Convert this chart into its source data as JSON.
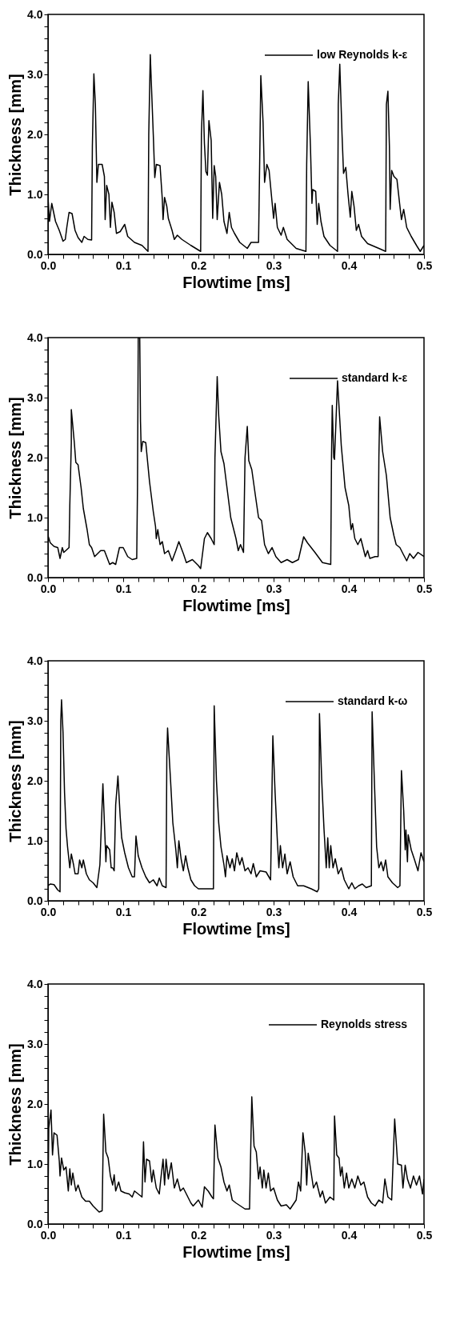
{
  "chart_data": [
    {
      "type": "line",
      "xlabel": "Flowtime [ms]",
      "ylabel": "Thickness [mm]",
      "legend": "top right",
      "xlim": [
        0,
        0.5
      ],
      "ylim": [
        0,
        4
      ],
      "xticks": [
        {
          "value": 0,
          "label": "0.0"
        },
        {
          "value": 0.02,
          "label": null
        },
        {
          "value": 0.04,
          "label": null
        },
        {
          "value": 0.06,
          "label": null
        },
        {
          "value": 0.08,
          "label": null
        },
        {
          "value": 0.1,
          "label": "0.1"
        },
        {
          "value": 0.12,
          "label": null
        },
        {
          "value": 0.14,
          "label": null
        },
        {
          "value": 0.16,
          "label": null
        },
        {
          "value": 0.18,
          "label": null
        },
        {
          "value": 0.2,
          "label": "0.2"
        },
        {
          "value": 0.22,
          "label": null
        },
        {
          "value": 0.24,
          "label": null
        },
        {
          "value": 0.26,
          "label": null
        },
        {
          "value": 0.28,
          "label": null
        },
        {
          "value": 0.3,
          "label": "0.3"
        },
        {
          "value": 0.32,
          "label": null
        },
        {
          "value": 0.34,
          "label": null
        },
        {
          "value": 0.36,
          "label": null
        },
        {
          "value": 0.38,
          "label": null
        },
        {
          "value": 0.4,
          "label": "0.4"
        },
        {
          "value": 0.42,
          "label": null
        },
        {
          "value": 0.44,
          "label": null
        },
        {
          "value": 0.46,
          "label": null
        },
        {
          "value": 0.48,
          "label": null
        },
        {
          "value": 0.5,
          "label": "0.5"
        }
      ],
      "yticks": [
        {
          "value": 0,
          "label": "0.0"
        },
        {
          "value": 0.2,
          "label": null
        },
        {
          "value": 0.4,
          "label": null
        },
        {
          "value": 0.6,
          "label": null
        },
        {
          "value": 0.8,
          "label": null
        },
        {
          "value": 1,
          "label": "1.0"
        },
        {
          "value": 1.2,
          "label": null
        },
        {
          "value": 1.4,
          "label": null
        },
        {
          "value": 1.6,
          "label": null
        },
        {
          "value": 1.8,
          "label": null
        },
        {
          "value": 2,
          "label": "2.0"
        },
        {
          "value": 2.2,
          "label": null
        },
        {
          "value": 2.4,
          "label": null
        },
        {
          "value": 2.6,
          "label": null
        },
        {
          "value": 2.8,
          "label": null
        },
        {
          "value": 3,
          "label": "3.0"
        },
        {
          "value": 3.2,
          "label": null
        },
        {
          "value": 3.4,
          "label": null
        },
        {
          "value": 3.6,
          "label": null
        },
        {
          "value": 3.8,
          "label": null
        },
        {
          "value": 4,
          "label": "4.0"
        }
      ],
      "series": [
        {
          "name": "low Reynolds k-ε",
          "color": "#000000",
          "x": [
            0,
            0.002,
            0.005,
            0.01,
            0.015,
            0.02,
            0.023,
            0.025,
            0.028,
            0.032,
            0.036,
            0.04,
            0.045,
            0.048,
            0.053,
            0.058,
            0.059,
            0.061,
            0.063,
            0.065,
            0.067,
            0.072,
            0.075,
            0.076,
            0.078,
            0.081,
            0.083,
            0.085,
            0.088,
            0.091,
            0.096,
            0.102,
            0.106,
            0.115,
            0.125,
            0.133,
            0.134,
            0.136,
            0.14,
            0.142,
            0.144,
            0.149,
            0.152,
            0.153,
            0.155,
            0.158,
            0.16,
            0.165,
            0.168,
            0.172,
            0.178,
            0.19,
            0.203,
            0.204,
            0.206,
            0.208,
            0.21,
            0.212,
            0.214,
            0.217,
            0.219,
            0.221,
            0.223,
            0.225,
            0.228,
            0.231,
            0.234,
            0.238,
            0.241,
            0.244,
            0.248,
            0.255,
            0.265,
            0.27,
            0.28,
            0.282,
            0.283,
            0.286,
            0.288,
            0.291,
            0.294,
            0.297,
            0.3,
            0.302,
            0.305,
            0.31,
            0.313,
            0.318,
            0.33,
            0.343,
            0.344,
            0.346,
            0.349,
            0.351,
            0.352,
            0.356,
            0.358,
            0.36,
            0.363,
            0.367,
            0.375,
            0.385,
            0.386,
            0.388,
            0.391,
            0.393,
            0.396,
            0.399,
            0.402,
            0.404,
            0.407,
            0.41,
            0.413,
            0.417,
            0.425,
            0.44,
            0.449,
            0.45,
            0.452,
            0.454,
            0.455,
            0.457,
            0.46,
            0.464,
            0.468,
            0.47,
            0.473,
            0.477,
            0.483,
            0.49,
            0.495,
            0.5
          ],
          "values": [
            0.95,
            0.55,
            0.85,
            0.55,
            0.4,
            0.22,
            0.25,
            0.45,
            0.7,
            0.68,
            0.4,
            0.28,
            0.2,
            0.3,
            0.25,
            0.24,
            1.8,
            3.01,
            2.5,
            1.2,
            1.5,
            1.5,
            1.3,
            0.58,
            1.15,
            1.0,
            0.45,
            0.87,
            0.7,
            0.35,
            0.38,
            0.5,
            0.3,
            0.2,
            0.15,
            0.05,
            2.0,
            3.33,
            2.0,
            1.28,
            1.5,
            1.48,
            0.92,
            0.58,
            0.95,
            0.8,
            0.6,
            0.4,
            0.25,
            0.32,
            0.25,
            0.15,
            0.05,
            2.0,
            2.73,
            1.85,
            1.38,
            1.32,
            2.23,
            1.9,
            0.6,
            1.48,
            1.3,
            0.58,
            1.2,
            1.0,
            0.55,
            0.35,
            0.7,
            0.45,
            0.35,
            0.2,
            0.1,
            0.2,
            0.2,
            2.0,
            2.98,
            2.2,
            1.2,
            1.5,
            1.4,
            1.0,
            0.6,
            0.85,
            0.45,
            0.32,
            0.45,
            0.25,
            0.1,
            0.05,
            1.5,
            2.88,
            1.8,
            0.85,
            1.08,
            1.05,
            0.5,
            0.85,
            0.55,
            0.3,
            0.15,
            0.05,
            2.5,
            3.17,
            2.0,
            1.35,
            1.45,
            1.0,
            0.62,
            1.05,
            0.8,
            0.4,
            0.5,
            0.3,
            0.18,
            0.1,
            0.05,
            2.5,
            2.72,
            1.8,
            0.75,
            1.4,
            1.3,
            1.25,
            0.8,
            0.58,
            0.75,
            0.45,
            0.3,
            0.15,
            0.05,
            0.15
          ]
        }
      ]
    },
    {
      "type": "line",
      "xlabel": "Flowtime [ms]",
      "ylabel": "Thickness [mm]",
      "legend": "top right",
      "xlim": [
        0,
        0.5
      ],
      "ylim": [
        0,
        4
      ],
      "xticks": [
        {
          "value": 0,
          "label": "0.0"
        },
        {
          "value": 0.02,
          "label": null
        },
        {
          "value": 0.04,
          "label": null
        },
        {
          "value": 0.06,
          "label": null
        },
        {
          "value": 0.08,
          "label": null
        },
        {
          "value": 0.1,
          "label": "0.1"
        },
        {
          "value": 0.12,
          "label": null
        },
        {
          "value": 0.14,
          "label": null
        },
        {
          "value": 0.16,
          "label": null
        },
        {
          "value": 0.18,
          "label": null
        },
        {
          "value": 0.2,
          "label": "0.2"
        },
        {
          "value": 0.22,
          "label": null
        },
        {
          "value": 0.24,
          "label": null
        },
        {
          "value": 0.26,
          "label": null
        },
        {
          "value": 0.28,
          "label": null
        },
        {
          "value": 0.3,
          "label": "0.3"
        },
        {
          "value": 0.32,
          "label": null
        },
        {
          "value": 0.34,
          "label": null
        },
        {
          "value": 0.36,
          "label": null
        },
        {
          "value": 0.38,
          "label": null
        },
        {
          "value": 0.4,
          "label": "0.4"
        },
        {
          "value": 0.42,
          "label": null
        },
        {
          "value": 0.44,
          "label": null
        },
        {
          "value": 0.46,
          "label": null
        },
        {
          "value": 0.48,
          "label": null
        },
        {
          "value": 0.5,
          "label": "0.5"
        }
      ],
      "yticks": [
        {
          "value": 0,
          "label": "0.0"
        },
        {
          "value": 0.2,
          "label": null
        },
        {
          "value": 0.4,
          "label": null
        },
        {
          "value": 0.6,
          "label": null
        },
        {
          "value": 0.8,
          "label": null
        },
        {
          "value": 1,
          "label": "1.0"
        },
        {
          "value": 1.2,
          "label": null
        },
        {
          "value": 1.4,
          "label": null
        },
        {
          "value": 1.6,
          "label": null
        },
        {
          "value": 1.8,
          "label": null
        },
        {
          "value": 2,
          "label": "2.0"
        },
        {
          "value": 2.2,
          "label": null
        },
        {
          "value": 2.4,
          "label": null
        },
        {
          "value": 2.6,
          "label": null
        },
        {
          "value": 2.8,
          "label": null
        },
        {
          "value": 3,
          "label": "3.0"
        },
        {
          "value": 3.2,
          "label": null
        },
        {
          "value": 3.4,
          "label": null
        },
        {
          "value": 3.6,
          "label": null
        },
        {
          "value": 3.8,
          "label": null
        },
        {
          "value": 4,
          "label": "4.0"
        }
      ],
      "series": [
        {
          "name": "standard k-ε",
          "color": "#000000",
          "x": [
            0,
            0.003,
            0.008,
            0.013,
            0.016,
            0.019,
            0.021,
            0.028,
            0.029,
            0.031,
            0.031,
            0.035,
            0.037,
            0.04,
            0.044,
            0.047,
            0.052,
            0.055,
            0.058,
            0.062,
            0.066,
            0.07,
            0.075,
            0.082,
            0.086,
            0.09,
            0.095,
            0.1,
            0.106,
            0.112,
            0.118,
            0.119,
            0.12,
            0.122,
            0.123,
            0.124,
            0.126,
            0.13,
            0.135,
            0.14,
            0.143,
            0.144,
            0.146,
            0.149,
            0.152,
            0.155,
            0.16,
            0.165,
            0.17,
            0.174,
            0.18,
            0.184,
            0.192,
            0.2,
            0.203,
            0.208,
            0.212,
            0.217,
            0.221,
            0.222,
            0.225,
            0.227,
            0.23,
            0.234,
            0.238,
            0.243,
            0.247,
            0.25,
            0.253,
            0.256,
            0.26,
            0.262,
            0.265,
            0.267,
            0.271,
            0.276,
            0.28,
            0.284,
            0.288,
            0.293,
            0.298,
            0.303,
            0.31,
            0.318,
            0.325,
            0.333,
            0.34,
            0.345,
            0.355,
            0.365,
            0.376,
            0.377,
            0.378,
            0.38,
            0.381,
            0.385,
            0.39,
            0.395,
            0.4,
            0.403,
            0.405,
            0.408,
            0.412,
            0.416,
            0.422,
            0.425,
            0.428,
            0.435,
            0.439,
            0.44,
            0.441,
            0.445,
            0.45,
            0.455,
            0.46,
            0.463,
            0.468,
            0.472,
            0.477,
            0.481,
            0.486,
            0.492,
            0.5
          ],
          "values": [
            0.7,
            0.58,
            0.52,
            0.5,
            0.32,
            0.5,
            0.42,
            0.5,
            1.2,
            2.25,
            2.8,
            2.25,
            1.92,
            1.88,
            1.5,
            1.15,
            0.8,
            0.55,
            0.5,
            0.35,
            0.4,
            0.45,
            0.45,
            0.22,
            0.25,
            0.22,
            0.5,
            0.5,
            0.35,
            0.3,
            0.32,
            1.5,
            4.0,
            4.0,
            2.6,
            2.1,
            2.27,
            2.25,
            1.6,
            1.1,
            0.85,
            0.65,
            0.8,
            0.55,
            0.6,
            0.4,
            0.45,
            0.28,
            0.45,
            0.6,
            0.4,
            0.25,
            0.3,
            0.2,
            0.15,
            0.65,
            0.75,
            0.65,
            0.55,
            2.0,
            3.35,
            2.7,
            2.1,
            1.9,
            1.5,
            1.0,
            0.8,
            0.65,
            0.45,
            0.55,
            0.42,
            2.0,
            2.52,
            1.95,
            1.8,
            1.35,
            1.0,
            0.95,
            0.55,
            0.4,
            0.5,
            0.35,
            0.25,
            0.3,
            0.25,
            0.3,
            0.68,
            0.58,
            0.42,
            0.25,
            0.22,
            2.0,
            2.87,
            2.0,
            1.97,
            3.28,
            2.2,
            1.5,
            1.2,
            0.8,
            0.9,
            0.65,
            0.55,
            0.65,
            0.35,
            0.45,
            0.32,
            0.35,
            0.35,
            2.0,
            2.68,
            2.1,
            1.7,
            1.0,
            0.7,
            0.55,
            0.5,
            0.4,
            0.28,
            0.4,
            0.32,
            0.42,
            0.35
          ]
        }
      ]
    },
    {
      "type": "line",
      "xlabel": "Flowtime [ms]",
      "ylabel": "Thickness [mm]",
      "legend": "top right",
      "xlim": [
        0,
        0.5
      ],
      "ylim": [
        0,
        4
      ],
      "xticks": [
        {
          "value": 0,
          "label": "0.0"
        },
        {
          "value": 0.02,
          "label": null
        },
        {
          "value": 0.04,
          "label": null
        },
        {
          "value": 0.06,
          "label": null
        },
        {
          "value": 0.08,
          "label": null
        },
        {
          "value": 0.1,
          "label": "0.1"
        },
        {
          "value": 0.12,
          "label": null
        },
        {
          "value": 0.14,
          "label": null
        },
        {
          "value": 0.16,
          "label": null
        },
        {
          "value": 0.18,
          "label": null
        },
        {
          "value": 0.2,
          "label": "0.2"
        },
        {
          "value": 0.22,
          "label": null
        },
        {
          "value": 0.24,
          "label": null
        },
        {
          "value": 0.26,
          "label": null
        },
        {
          "value": 0.28,
          "label": null
        },
        {
          "value": 0.3,
          "label": "0.3"
        },
        {
          "value": 0.32,
          "label": null
        },
        {
          "value": 0.34,
          "label": null
        },
        {
          "value": 0.36,
          "label": null
        },
        {
          "value": 0.38,
          "label": null
        },
        {
          "value": 0.4,
          "label": "0.4"
        },
        {
          "value": 0.42,
          "label": null
        },
        {
          "value": 0.44,
          "label": null
        },
        {
          "value": 0.46,
          "label": null
        },
        {
          "value": 0.48,
          "label": null
        },
        {
          "value": 0.5,
          "label": "0.5"
        }
      ],
      "yticks": [
        {
          "value": 0,
          "label": "0.0"
        },
        {
          "value": 0.2,
          "label": null
        },
        {
          "value": 0.4,
          "label": null
        },
        {
          "value": 0.6,
          "label": null
        },
        {
          "value": 0.8,
          "label": null
        },
        {
          "value": 1,
          "label": "1.0"
        },
        {
          "value": 1.2,
          "label": null
        },
        {
          "value": 1.4,
          "label": null
        },
        {
          "value": 1.6,
          "label": null
        },
        {
          "value": 1.8,
          "label": null
        },
        {
          "value": 2,
          "label": "2.0"
        },
        {
          "value": 2.2,
          "label": null
        },
        {
          "value": 2.4,
          "label": null
        },
        {
          "value": 2.6,
          "label": null
        },
        {
          "value": 2.8,
          "label": null
        },
        {
          "value": 3,
          "label": "3.0"
        },
        {
          "value": 3.2,
          "label": null
        },
        {
          "value": 3.4,
          "label": null
        },
        {
          "value": 3.6,
          "label": null
        },
        {
          "value": 3.8,
          "label": null
        },
        {
          "value": 4,
          "label": "4.0"
        }
      ],
      "series": [
        {
          "name": "standard k-ω",
          "color": "#000000",
          "x": [
            0,
            0.003,
            0.008,
            0.013,
            0.016,
            0.017,
            0.018,
            0.02,
            0.022,
            0.024,
            0.026,
            0.029,
            0.031,
            0.034,
            0.036,
            0.04,
            0.042,
            0.045,
            0.047,
            0.051,
            0.055,
            0.06,
            0.065,
            0.069,
            0.073,
            0.075,
            0.077,
            0.078,
            0.082,
            0.084,
            0.086,
            0.088,
            0.09,
            0.093,
            0.096,
            0.098,
            0.102,
            0.107,
            0.112,
            0.115,
            0.117,
            0.12,
            0.125,
            0.13,
            0.135,
            0.14,
            0.145,
            0.148,
            0.152,
            0.157,
            0.158,
            0.159,
            0.163,
            0.166,
            0.17,
            0.172,
            0.174,
            0.177,
            0.18,
            0.183,
            0.186,
            0.19,
            0.195,
            0.2,
            0.205,
            0.22,
            0.221,
            0.224,
            0.227,
            0.23,
            0.234,
            0.236,
            0.238,
            0.242,
            0.245,
            0.248,
            0.251,
            0.255,
            0.258,
            0.262,
            0.266,
            0.27,
            0.273,
            0.277,
            0.282,
            0.29,
            0.296,
            0.299,
            0.302,
            0.305,
            0.307,
            0.309,
            0.312,
            0.315,
            0.318,
            0.322,
            0.326,
            0.332,
            0.34,
            0.35,
            0.358,
            0.36,
            0.361,
            0.364,
            0.367,
            0.37,
            0.372,
            0.374,
            0.376,
            0.379,
            0.382,
            0.386,
            0.39,
            0.394,
            0.4,
            0.404,
            0.408,
            0.413,
            0.418,
            0.423,
            0.43,
            0.431,
            0.434,
            0.437,
            0.44,
            0.443,
            0.446,
            0.449,
            0.452,
            0.458,
            0.465,
            0.468,
            0.47,
            0.473,
            0.475,
            0.476,
            0.478,
            0.479,
            0.483,
            0.487,
            0.492,
            0.496,
            0.5
          ],
          "values": [
            0.25,
            0.28,
            0.27,
            0.18,
            0.15,
            3.0,
            3.35,
            2.8,
            1.8,
            1.2,
            0.9,
            0.55,
            0.78,
            0.6,
            0.45,
            0.45,
            0.68,
            0.55,
            0.68,
            0.45,
            0.35,
            0.3,
            0.22,
            0.6,
            1.95,
            1.3,
            0.65,
            0.92,
            0.85,
            0.55,
            0.55,
            0.5,
            1.6,
            2.08,
            1.4,
            1.05,
            0.8,
            0.55,
            0.4,
            0.4,
            1.08,
            0.75,
            0.55,
            0.4,
            0.3,
            0.35,
            0.25,
            0.38,
            0.25,
            0.22,
            2.4,
            2.88,
            2.0,
            1.3,
            0.85,
            0.55,
            1.0,
            0.7,
            0.5,
            0.75,
            0.55,
            0.35,
            0.25,
            0.2,
            0.2,
            0.2,
            3.25,
            2.0,
            1.3,
            0.9,
            0.6,
            0.4,
            0.75,
            0.55,
            0.7,
            0.5,
            0.8,
            0.6,
            0.72,
            0.5,
            0.55,
            0.45,
            0.62,
            0.4,
            0.5,
            0.48,
            0.35,
            2.75,
            1.8,
            1.0,
            0.55,
            0.92,
            0.55,
            0.78,
            0.45,
            0.65,
            0.4,
            0.25,
            0.25,
            0.2,
            0.15,
            0.2,
            3.12,
            2.0,
            1.2,
            0.55,
            1.05,
            0.55,
            0.92,
            0.55,
            0.7,
            0.45,
            0.55,
            0.35,
            0.2,
            0.3,
            0.2,
            0.25,
            0.28,
            0.22,
            0.25,
            3.15,
            2.0,
            0.9,
            0.55,
            0.65,
            0.5,
            0.68,
            0.4,
            0.3,
            0.22,
            0.25,
            2.17,
            1.5,
            0.85,
            1.18,
            0.65,
            1.1,
            0.85,
            0.7,
            0.5,
            0.8,
            0.65
          ]
        }
      ]
    },
    {
      "type": "line",
      "xlabel": "Flowtime [ms]",
      "ylabel": "Thickness [mm]",
      "legend": "top right",
      "xlim": [
        0,
        0.5
      ],
      "ylim": [
        0,
        4
      ],
      "xticks": [
        {
          "value": 0,
          "label": "0.0"
        },
        {
          "value": 0.02,
          "label": null
        },
        {
          "value": 0.04,
          "label": null
        },
        {
          "value": 0.06,
          "label": null
        },
        {
          "value": 0.08,
          "label": null
        },
        {
          "value": 0.1,
          "label": "0.1"
        },
        {
          "value": 0.12,
          "label": null
        },
        {
          "value": 0.14,
          "label": null
        },
        {
          "value": 0.16,
          "label": null
        },
        {
          "value": 0.18,
          "label": null
        },
        {
          "value": 0.2,
          "label": "0.2"
        },
        {
          "value": 0.22,
          "label": null
        },
        {
          "value": 0.24,
          "label": null
        },
        {
          "value": 0.26,
          "label": null
        },
        {
          "value": 0.28,
          "label": null
        },
        {
          "value": 0.3,
          "label": "0.3"
        },
        {
          "value": 0.32,
          "label": null
        },
        {
          "value": 0.34,
          "label": null
        },
        {
          "value": 0.36,
          "label": null
        },
        {
          "value": 0.38,
          "label": null
        },
        {
          "value": 0.4,
          "label": "0.4"
        },
        {
          "value": 0.42,
          "label": null
        },
        {
          "value": 0.44,
          "label": null
        },
        {
          "value": 0.46,
          "label": null
        },
        {
          "value": 0.48,
          "label": null
        },
        {
          "value": 0.5,
          "label": "0.5"
        }
      ],
      "yticks": [
        {
          "value": 0,
          "label": "0.0"
        },
        {
          "value": 0.2,
          "label": null
        },
        {
          "value": 0.4,
          "label": null
        },
        {
          "value": 0.6,
          "label": null
        },
        {
          "value": 0.8,
          "label": null
        },
        {
          "value": 1,
          "label": "1.0"
        },
        {
          "value": 1.2,
          "label": null
        },
        {
          "value": 1.4,
          "label": null
        },
        {
          "value": 1.6,
          "label": null
        },
        {
          "value": 1.8,
          "label": null
        },
        {
          "value": 2,
          "label": "2.0"
        },
        {
          "value": 2.2,
          "label": null
        },
        {
          "value": 2.4,
          "label": null
        },
        {
          "value": 2.6,
          "label": null
        },
        {
          "value": 2.8,
          "label": null
        },
        {
          "value": 3,
          "label": "3.0"
        },
        {
          "value": 3.2,
          "label": null
        },
        {
          "value": 3.4,
          "label": null
        },
        {
          "value": 3.6,
          "label": null
        },
        {
          "value": 3.8,
          "label": null
        },
        {
          "value": 4,
          "label": "4.0"
        }
      ],
      "series": [
        {
          "name": "Reynolds stress",
          "color": "#000000",
          "x": [
            0,
            0.001,
            0.004,
            0.006,
            0.008,
            0.012,
            0.015,
            0.016,
            0.018,
            0.021,
            0.024,
            0.027,
            0.029,
            0.031,
            0.033,
            0.037,
            0.04,
            0.045,
            0.05,
            0.055,
            0.06,
            0.068,
            0.072,
            0.074,
            0.077,
            0.08,
            0.083,
            0.086,
            0.088,
            0.09,
            0.094,
            0.097,
            0.102,
            0.108,
            0.112,
            0.115,
            0.125,
            0.127,
            0.129,
            0.131,
            0.135,
            0.138,
            0.14,
            0.144,
            0.148,
            0.15,
            0.153,
            0.155,
            0.157,
            0.16,
            0.164,
            0.168,
            0.172,
            0.176,
            0.18,
            0.186,
            0.19,
            0.193,
            0.2,
            0.205,
            0.208,
            0.213,
            0.218,
            0.22,
            0.222,
            0.226,
            0.23,
            0.234,
            0.238,
            0.241,
            0.245,
            0.25,
            0.256,
            0.262,
            0.268,
            0.271,
            0.274,
            0.277,
            0.28,
            0.282,
            0.285,
            0.287,
            0.29,
            0.293,
            0.296,
            0.3,
            0.305,
            0.31,
            0.317,
            0.322,
            0.33,
            0.333,
            0.336,
            0.339,
            0.342,
            0.344,
            0.346,
            0.35,
            0.353,
            0.357,
            0.362,
            0.365,
            0.369,
            0.375,
            0.38,
            0.381,
            0.384,
            0.387,
            0.389,
            0.391,
            0.394,
            0.397,
            0.4,
            0.404,
            0.408,
            0.412,
            0.416,
            0.42,
            0.425,
            0.43,
            0.435,
            0.44,
            0.445,
            0.448,
            0.452,
            0.457,
            0.461,
            0.465,
            0.47,
            0.472,
            0.475,
            0.478,
            0.482,
            0.486,
            0.49,
            0.494,
            0.498,
            0.5
          ],
          "values": [
            0.25,
            1.6,
            1.9,
            1.15,
            1.52,
            1.48,
            1.05,
            0.8,
            1.1,
            0.9,
            0.95,
            0.55,
            0.92,
            0.65,
            0.85,
            0.55,
            0.65,
            0.45,
            0.38,
            0.38,
            0.3,
            0.2,
            0.22,
            1.83,
            1.2,
            1.1,
            0.8,
            0.65,
            0.82,
            0.55,
            0.7,
            0.55,
            0.52,
            0.5,
            0.45,
            0.55,
            0.45,
            1.37,
            0.7,
            1.08,
            1.05,
            0.7,
            0.9,
            0.6,
            0.5,
            0.75,
            1.08,
            0.65,
            1.08,
            0.75,
            1.02,
            0.6,
            0.75,
            0.55,
            0.6,
            0.45,
            0.35,
            0.3,
            0.4,
            0.28,
            0.62,
            0.55,
            0.45,
            0.42,
            1.65,
            1.1,
            0.95,
            0.7,
            0.55,
            0.65,
            0.4,
            0.35,
            0.3,
            0.25,
            0.25,
            2.12,
            1.3,
            1.2,
            0.75,
            0.95,
            0.6,
            0.9,
            0.6,
            0.85,
            0.55,
            0.6,
            0.4,
            0.3,
            0.32,
            0.25,
            0.4,
            0.7,
            0.55,
            1.52,
            1.2,
            0.65,
            1.18,
            0.85,
            0.6,
            0.7,
            0.45,
            0.55,
            0.35,
            0.45,
            0.4,
            1.8,
            1.15,
            1.1,
            0.8,
            0.95,
            0.6,
            0.85,
            0.6,
            0.75,
            0.6,
            0.8,
            0.65,
            0.7,
            0.45,
            0.35,
            0.3,
            0.4,
            0.35,
            0.75,
            0.45,
            0.4,
            1.75,
            1.0,
            0.98,
            0.6,
            0.98,
            0.75,
            0.6,
            0.8,
            0.65,
            0.8,
            0.5,
            0.75
          ]
        }
      ]
    }
  ]
}
